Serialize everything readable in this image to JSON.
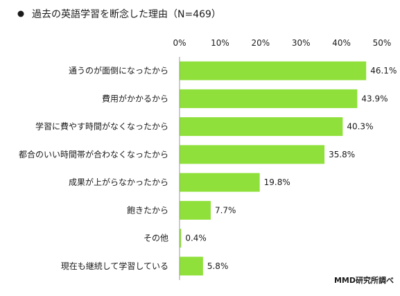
{
  "chart_data": {
    "type": "bar",
    "orientation": "horizontal",
    "title": "過去の英語学習を断念した理由（N=469）",
    "categories": [
      "通うのが面倒になったから",
      "費用がかかるから",
      "学習に費やす時間がなくなったから",
      "都合のいい時間帯が合わなくなったから",
      "成果が上がらなかったから",
      "飽きたから",
      "その他",
      "現在も継続して学習している"
    ],
    "values": [
      46.1,
      43.9,
      40.3,
      35.8,
      19.8,
      7.7,
      0.4,
      5.8
    ],
    "value_labels": [
      "46.1%",
      "43.9%",
      "40.3%",
      "35.8%",
      "19.8%",
      "7.7%",
      "0.4%",
      "5.8%"
    ],
    "ticks": [
      0,
      10,
      20,
      30,
      40,
      50
    ],
    "tick_labels": [
      "0%",
      "10%",
      "20%",
      "30%",
      "40%",
      "50%"
    ],
    "xlim": [
      0,
      50
    ],
    "grid": false,
    "legend": "none",
    "bar_color": "#8fe03a",
    "axis_color": "#9a9a9a"
  },
  "source": "MMD研究所調べ"
}
